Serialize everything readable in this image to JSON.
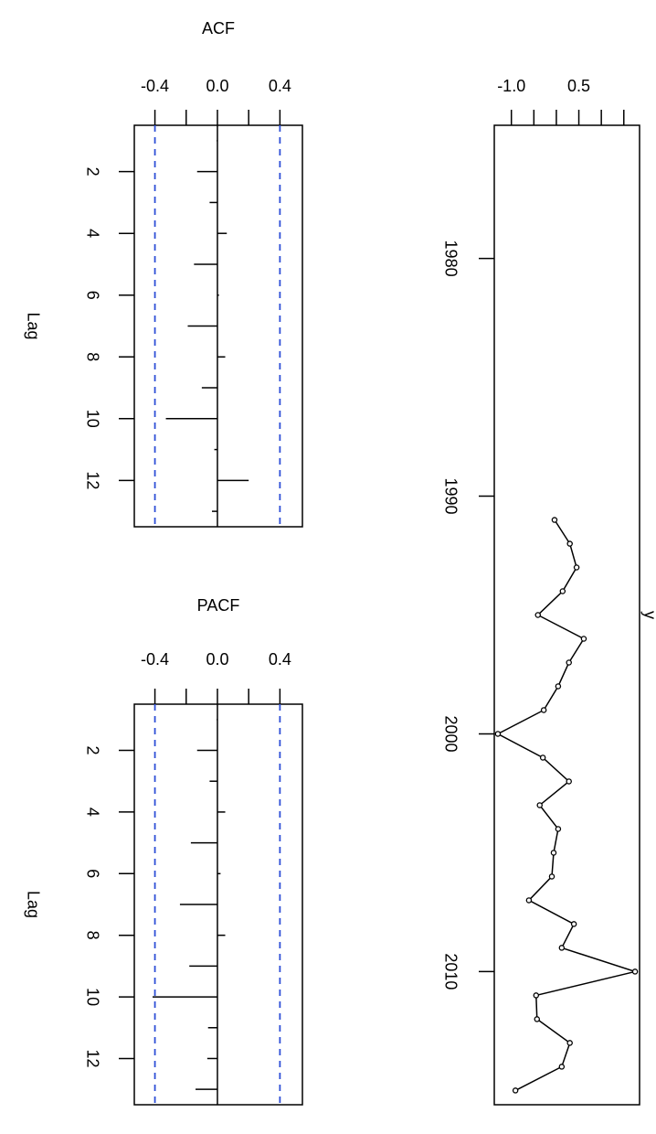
{
  "chart_data": [
    {
      "type": "bar",
      "title": "ACF",
      "ylabel": "Lag",
      "x": [
        1,
        2,
        3,
        4,
        5,
        6,
        7,
        8,
        9,
        10,
        11,
        12,
        13
      ],
      "values": [
        -0.005,
        -0.13,
        -0.05,
        0.06,
        -0.15,
        0.01,
        -0.19,
        0.05,
        -0.1,
        -0.33,
        -0.02,
        0.2,
        -0.035
      ],
      "color": "#000000",
      "ylim": [
        -0.532,
        0.544
      ],
      "yticks": [
        -0.4,
        {
          "value": 0,
          "label": "0.0"
        },
        0.4
      ],
      "yminor": [
        -0.2,
        0.2
      ],
      "xlim": [
        0.5,
        13.5
      ],
      "xticks": [
        2,
        4,
        6,
        8,
        10,
        12
      ],
      "ci": [
        -0.4,
        0.4
      ],
      "ci_color": "#2e4fd6"
    },
    {
      "type": "bar",
      "title": "PACF",
      "ylabel": "Lag",
      "x": [
        1,
        2,
        3,
        4,
        5,
        6,
        7,
        8,
        9,
        10,
        11,
        12,
        13
      ],
      "values": [
        -0.005,
        -0.13,
        -0.05,
        0.05,
        -0.17,
        0.02,
        -0.24,
        0.05,
        -0.18,
        -0.415,
        -0.06,
        -0.065,
        -0.14
      ],
      "color": "#000000",
      "ylim": [
        -0.532,
        0.544
      ],
      "yticks": [
        -0.4,
        {
          "value": 0,
          "label": "0.0"
        },
        0.4
      ],
      "yminor": [
        -0.2,
        0.2
      ],
      "xlim": [
        0.5,
        13.5
      ],
      "xticks": [
        2,
        4,
        6,
        8,
        10,
        12
      ],
      "ci": [
        -0.4,
        0.4
      ],
      "ci_color": "#2e4fd6"
    },
    {
      "type": "line",
      "ylabel": "y",
      "x": [
        1991,
        1992,
        1993,
        1994,
        1995,
        1996,
        1997,
        1998,
        1999,
        2000,
        2001,
        2002,
        2003,
        2004,
        2005,
        2006,
        2007,
        2008,
        2009,
        2010,
        2011,
        2012,
        2013,
        2014,
        2015
      ],
      "values": [
        -0.04,
        0.3,
        0.45,
        0.14,
        -0.41,
        0.61,
        0.28,
        0.04,
        -0.28,
        -1.3,
        -0.3,
        0.28,
        -0.37,
        0.04,
        -0.06,
        -0.1,
        -0.61,
        0.39,
        0.12,
        1.75,
        -0.45,
        -0.43,
        0.3,
        0.12,
        -0.91
      ],
      "color": "#000000",
      "ylim": [
        -1.38,
        1.85
      ],
      "yticks": [
        {
          "value": -1,
          "label": "-1.0"
        },
        0.5
      ],
      "yminor": [
        -0.5,
        0,
        1,
        1.5
      ],
      "xlim": [
        1974.4,
        2015.6
      ],
      "xticks": [
        1980,
        1990,
        2000,
        2010
      ]
    }
  ]
}
